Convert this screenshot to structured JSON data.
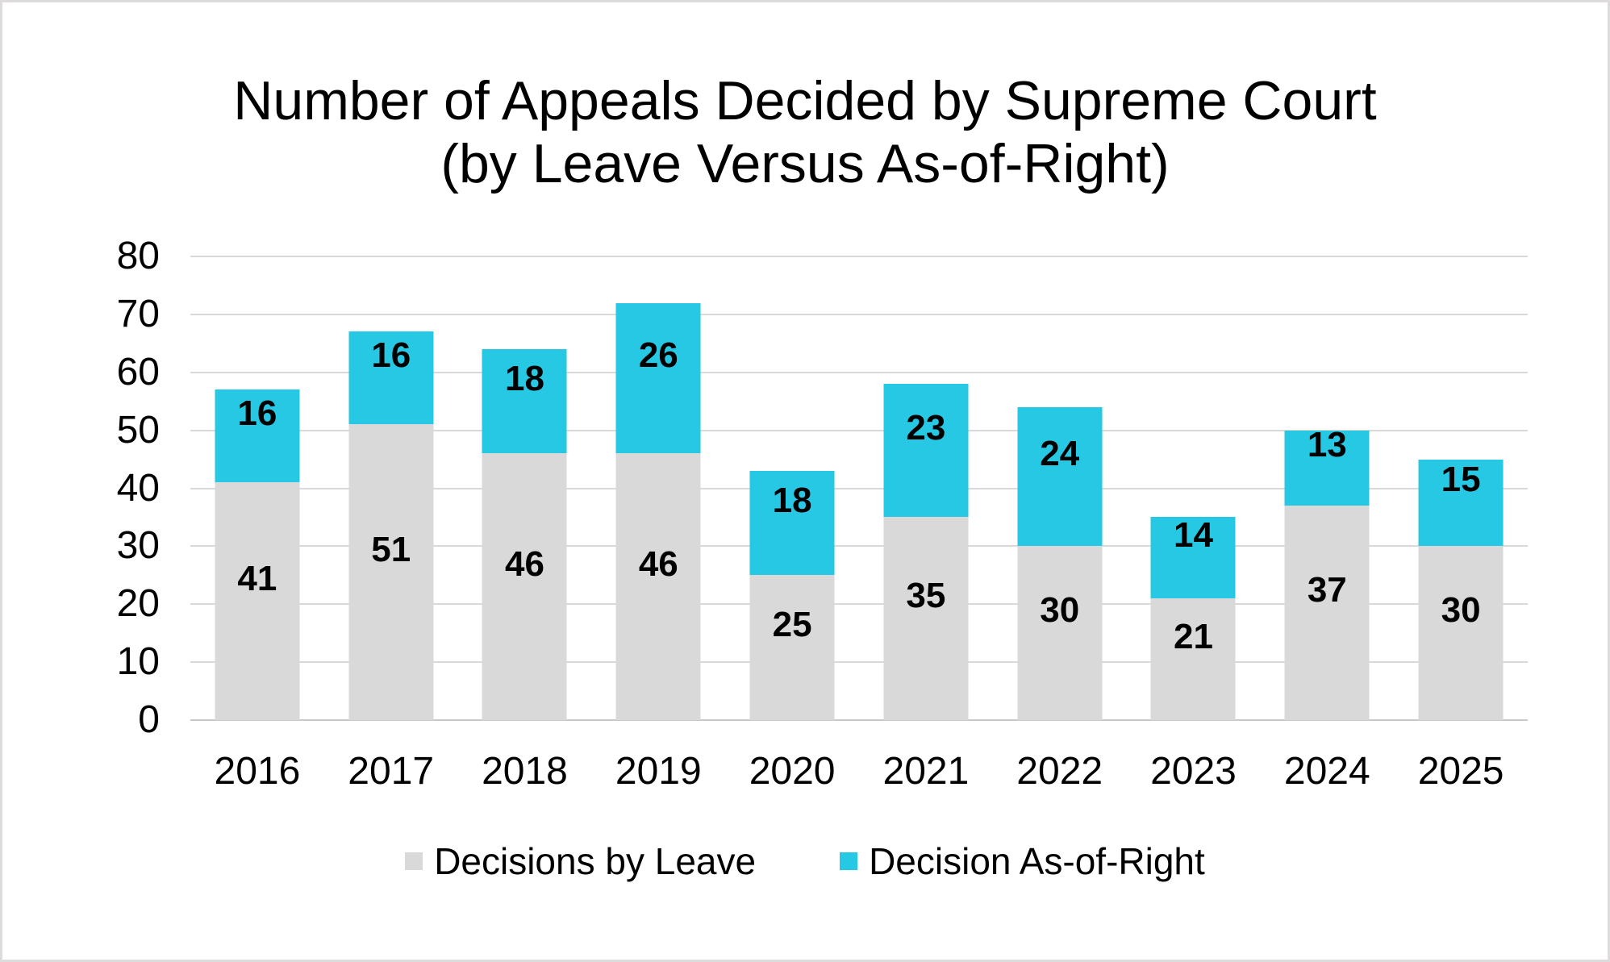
{
  "window": {
    "background_color": "#ffffff",
    "border_color": "#dddbdb"
  },
  "chart_data": {
    "type": "bar",
    "stacked": true,
    "title": "Number of Appeals Decided by Supreme Court (by Leave Versus As-of-Right)",
    "title_lines": [
      "Number of Appeals Decided by Supreme Court",
      "(by Leave Versus As-of-Right)"
    ],
    "categories": [
      "2016",
      "2017",
      "2018",
      "2019",
      "2020",
      "2021",
      "2022",
      "2023",
      "2024",
      "2025"
    ],
    "series": [
      {
        "name": "Decisions by Leave",
        "color": "#d9d9d9",
        "values": [
          41,
          51,
          46,
          46,
          25,
          35,
          30,
          21,
          37,
          30
        ]
      },
      {
        "name": "Decision As-of-Right",
        "color": "#27c8e3",
        "values": [
          16,
          16,
          18,
          26,
          18,
          23,
          24,
          14,
          13,
          15
        ]
      }
    ],
    "xlabel": "",
    "ylabel": "",
    "ylim": [
      0,
      80
    ],
    "yticks": [
      0,
      10,
      20,
      30,
      40,
      50,
      60,
      70,
      80
    ],
    "grid": true,
    "gridline_color": "#d9d9d9",
    "axis_line_color": "#c9c9c9",
    "value_label_color": "#000000",
    "legend_position": "bottom"
  }
}
